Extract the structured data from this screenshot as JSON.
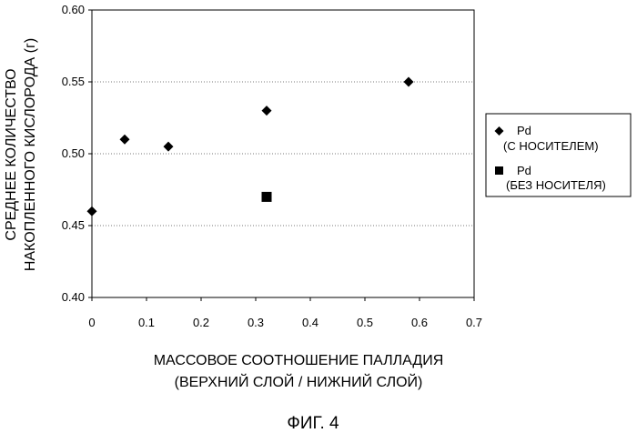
{
  "figure": {
    "caption": "ФИГ. 4"
  },
  "chart_data": {
    "type": "scatter",
    "xlabel": [
      "МАССОВОЕ СООТНОШЕНИЕ ПАЛЛАДИЯ",
      "(ВЕРХНИЙ СЛОЙ / НИЖНИЙ СЛОЙ)"
    ],
    "ylabel": [
      "СРЕДНЕЕ КОЛИЧЕСТВО",
      "НАКОПЛЕННОГО КИСЛОРОДА (г)"
    ],
    "xlim": [
      0,
      0.7
    ],
    "ylim": [
      0.4,
      0.6
    ],
    "xticks": [
      0,
      0.1,
      0.2,
      0.3,
      0.4,
      0.5,
      0.6,
      0.7
    ],
    "xtick_labels": [
      "0",
      "0.1",
      "0.2",
      "0.3",
      "0.4",
      "0.5",
      "0.6",
      "0.7"
    ],
    "yticks": [
      0.4,
      0.45,
      0.5,
      0.55,
      0.6
    ],
    "ytick_labels": [
      "0.40",
      "0.45",
      "0.50",
      "0.55",
      "0.60"
    ],
    "grid": "horizontal dotted",
    "legend_position": "right",
    "series": [
      {
        "name": [
          "Pd",
          "(С НОСИТЕЛЕМ)"
        ],
        "marker": "diamond",
        "color": "#000000",
        "points": [
          {
            "x": 0.0,
            "y": 0.46
          },
          {
            "x": 0.06,
            "y": 0.51
          },
          {
            "x": 0.14,
            "y": 0.505
          },
          {
            "x": 0.32,
            "y": 0.53
          },
          {
            "x": 0.58,
            "y": 0.55
          }
        ]
      },
      {
        "name": [
          "Pd",
          "(БЕЗ НОСИТЕЛЯ)"
        ],
        "marker": "square",
        "color": "#000000",
        "points": [
          {
            "x": 0.32,
            "y": 0.47
          }
        ]
      }
    ]
  }
}
